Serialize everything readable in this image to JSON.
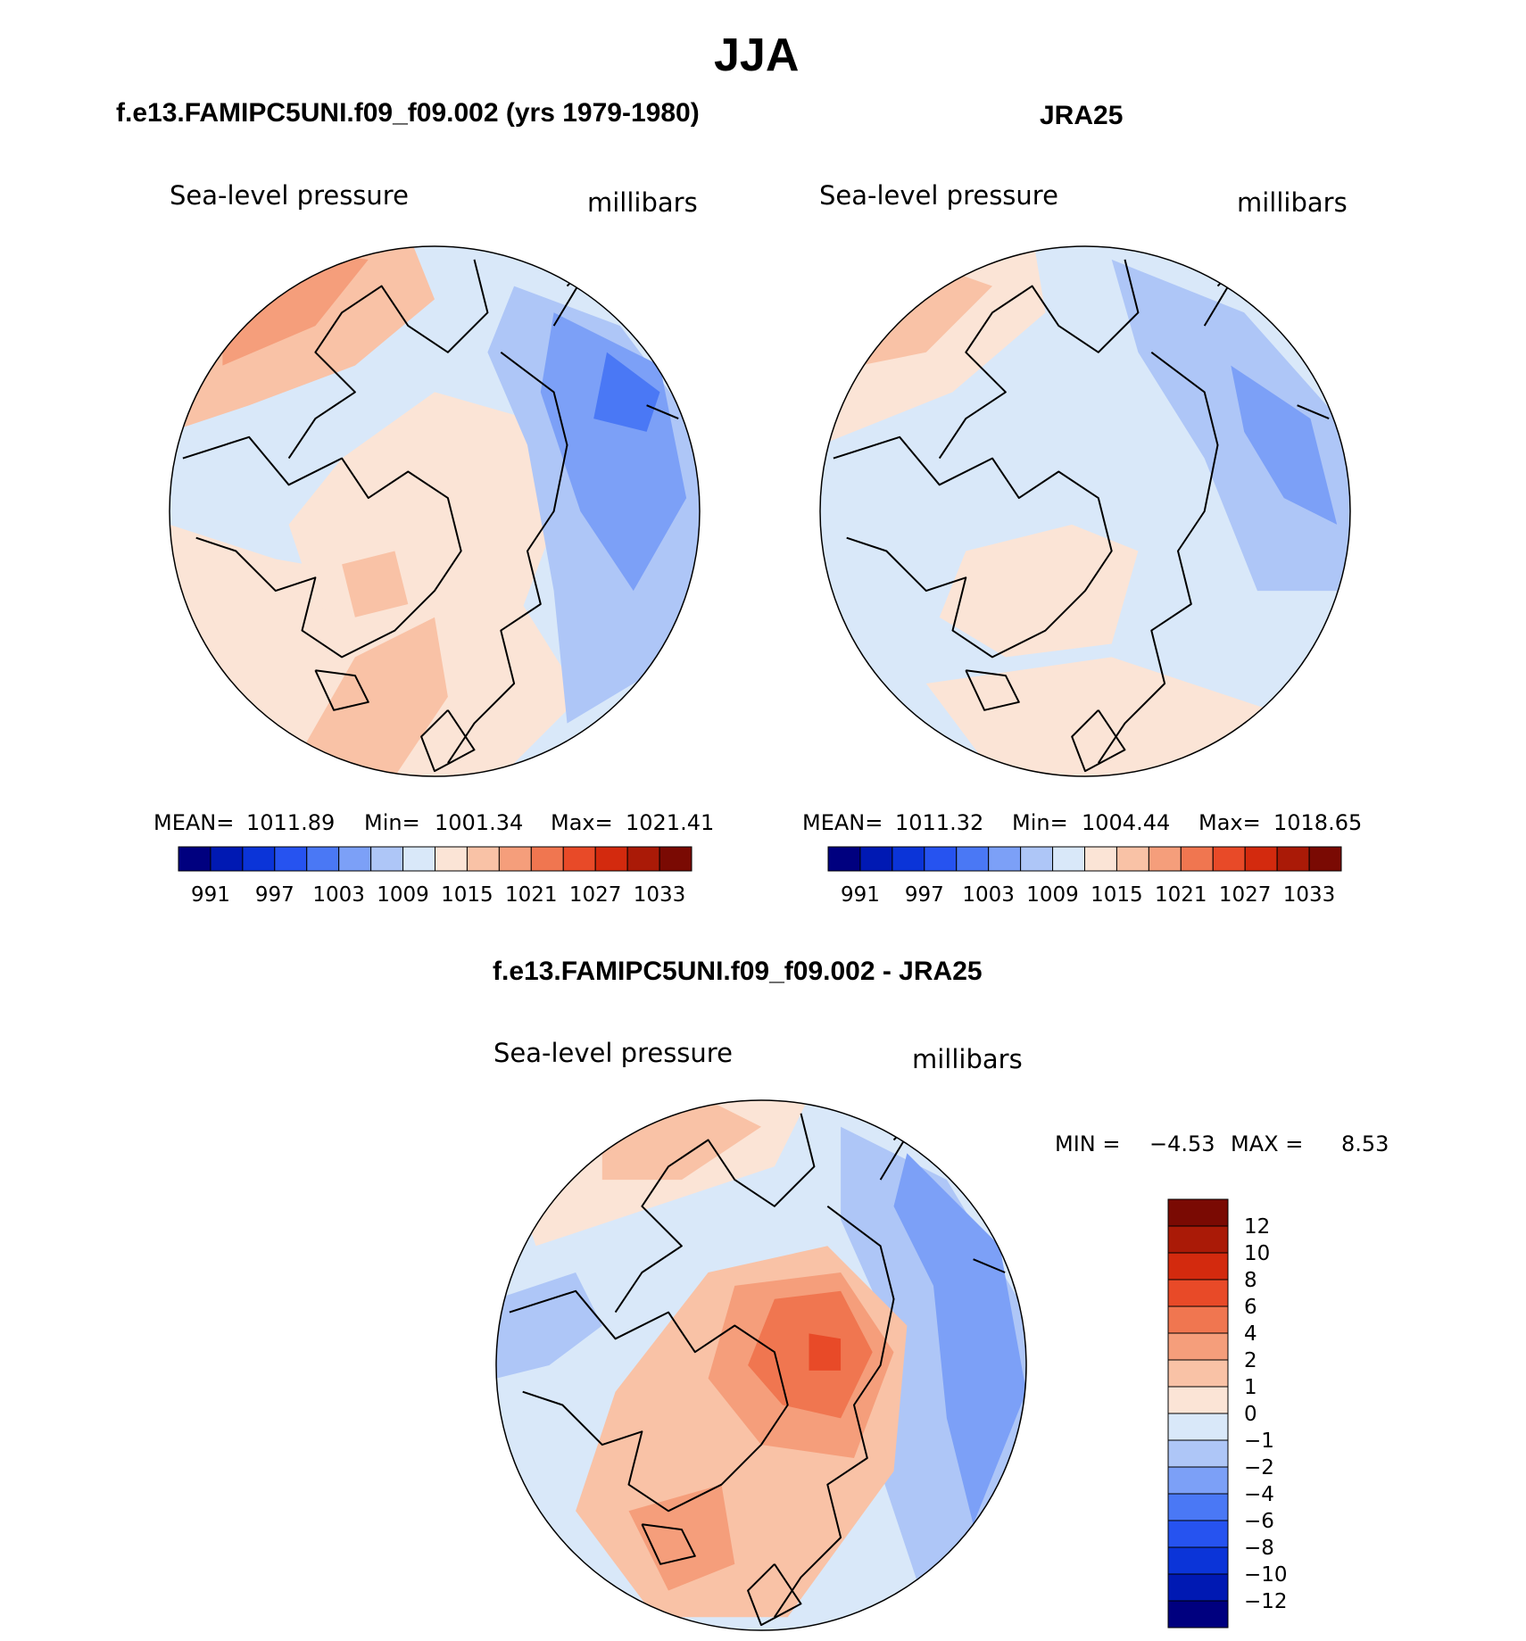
{
  "page": {
    "season_title": "JJA",
    "bottom_title": "f.e13.FAMIPC5UNI.f09_f09.002 - JRA25"
  },
  "palette": {
    "abs": [
      "#00007f",
      "#0019b3",
      "#0b34d8",
      "#2653f0",
      "#4a78f5",
      "#7ca0f7",
      "#aec6f7",
      "#d9e8f9",
      "#fbe4d6",
      "#f9c2a6",
      "#f59e7b",
      "#f07650",
      "#e84a28",
      "#d32a0e",
      "#aa1a07",
      "#7a0a03"
    ],
    "diff": [
      "#00007f",
      "#0019b3",
      "#0b34d8",
      "#2653f0",
      "#4a78f5",
      "#7ca0f7",
      "#aec6f7",
      "#d9e8f9",
      "#fbe4d6",
      "#f9c2a6",
      "#f59e7b",
      "#f07650",
      "#e84a28",
      "#d32a0e",
      "#aa1a07",
      "#7a0a03"
    ],
    "coast": "#000000"
  },
  "chart_data": [
    {
      "type": "contour-map",
      "projection": "north polar stereographic",
      "title": "f.e13.FAMIPC5UNI.f09_f09.002 (yrs 1979-1980)",
      "variable": "Sea-level pressure",
      "units": "millibars",
      "stats": {
        "mean_label": "MEAN=",
        "mean": "1011.89",
        "min_label": "Min=",
        "min": "1001.34",
        "max_label": "Max=",
        "max": "1021.41"
      },
      "colorbar_ticks": [
        "991",
        "997",
        "1003",
        "1009",
        "1015",
        "1021",
        "1027",
        "1033"
      ],
      "regions": [
        {
          "name": "background",
          "level": 1009,
          "color_index": 7
        },
        {
          "name": "north-atlantic",
          "level": 1015,
          "color_index": 8
        },
        {
          "name": "arctic-high",
          "level": 1015,
          "color_index": 8
        },
        {
          "name": "pacific-ne",
          "level": 1021,
          "color_index": 9
        },
        {
          "name": "pacific-ne-core",
          "level": 1021,
          "color_index": 10
        },
        {
          "name": "azores",
          "level": 1021,
          "color_index": 9
        },
        {
          "name": "greenland-max",
          "level": 1021,
          "color_index": 9
        },
        {
          "name": "asia-low",
          "level": 1003,
          "color_index": 6
        },
        {
          "name": "asia-low-core",
          "level": 1003,
          "color_index": 5
        },
        {
          "name": "asia-low-min",
          "level": 1001,
          "color_index": 4
        }
      ]
    },
    {
      "type": "contour-map",
      "projection": "north polar stereographic",
      "title": "JRA25",
      "variable": "Sea-level pressure",
      "units": "millibars",
      "stats": {
        "mean_label": "MEAN=",
        "mean": "1011.32",
        "min_label": "Min=",
        "min": "1004.44",
        "max_label": "Max=",
        "max": "1018.65"
      },
      "colorbar_ticks": [
        "991",
        "997",
        "1003",
        "1009",
        "1015",
        "1021",
        "1027",
        "1033"
      ],
      "regions": [
        {
          "name": "background",
          "level": 1009,
          "color_index": 7
        },
        {
          "name": "pacific-ne",
          "level": 1015,
          "color_index": 8
        },
        {
          "name": "pacific-ne-core",
          "level": 1021,
          "color_index": 9
        },
        {
          "name": "greenland",
          "level": 1015,
          "color_index": 8
        },
        {
          "name": "azores",
          "level": 1015,
          "color_index": 8
        },
        {
          "name": "asia-low",
          "level": 1003,
          "color_index": 6
        },
        {
          "name": "asia-low-core",
          "level": 1003,
          "color_index": 5
        }
      ]
    },
    {
      "type": "contour-map",
      "projection": "north polar stereographic",
      "title": "f.e13.FAMIPC5UNI.f09_f09.002 - JRA25",
      "variable": "Sea-level pressure",
      "units": "millibars",
      "stats": {
        "min_label": "MIN =",
        "min": "−4.53",
        "max_label": "MAX =",
        "max": "8.53"
      },
      "colorbar_ticks": [
        "12",
        "10",
        "8",
        "6",
        "4",
        "2",
        "1",
        "0",
        "−1",
        "−2",
        "−4",
        "−6",
        "−8",
        "−10",
        "−12"
      ],
      "regions": [
        {
          "name": "background",
          "level": 0,
          "color_index": 7
        },
        {
          "name": "asia-negative",
          "level": -2,
          "color_index": 6
        },
        {
          "name": "asia-negative-core",
          "level": -4,
          "color_index": 5
        },
        {
          "name": "pacific-positive",
          "level": 1,
          "color_index": 8
        },
        {
          "name": "pacific-positive-core",
          "level": 2,
          "color_index": 9
        },
        {
          "name": "arctic-positive",
          "level": 2,
          "color_index": 9
        },
        {
          "name": "arctic-positive-4",
          "level": 4,
          "color_index": 10
        },
        {
          "name": "arctic-positive-6",
          "level": 6,
          "color_index": 11
        },
        {
          "name": "arctic-positive-max",
          "level": 8,
          "color_index": 12
        },
        {
          "name": "atlantic-positive",
          "level": 4,
          "color_index": 10
        },
        {
          "name": "canada-negative",
          "level": -2,
          "color_index": 6
        }
      ]
    }
  ]
}
